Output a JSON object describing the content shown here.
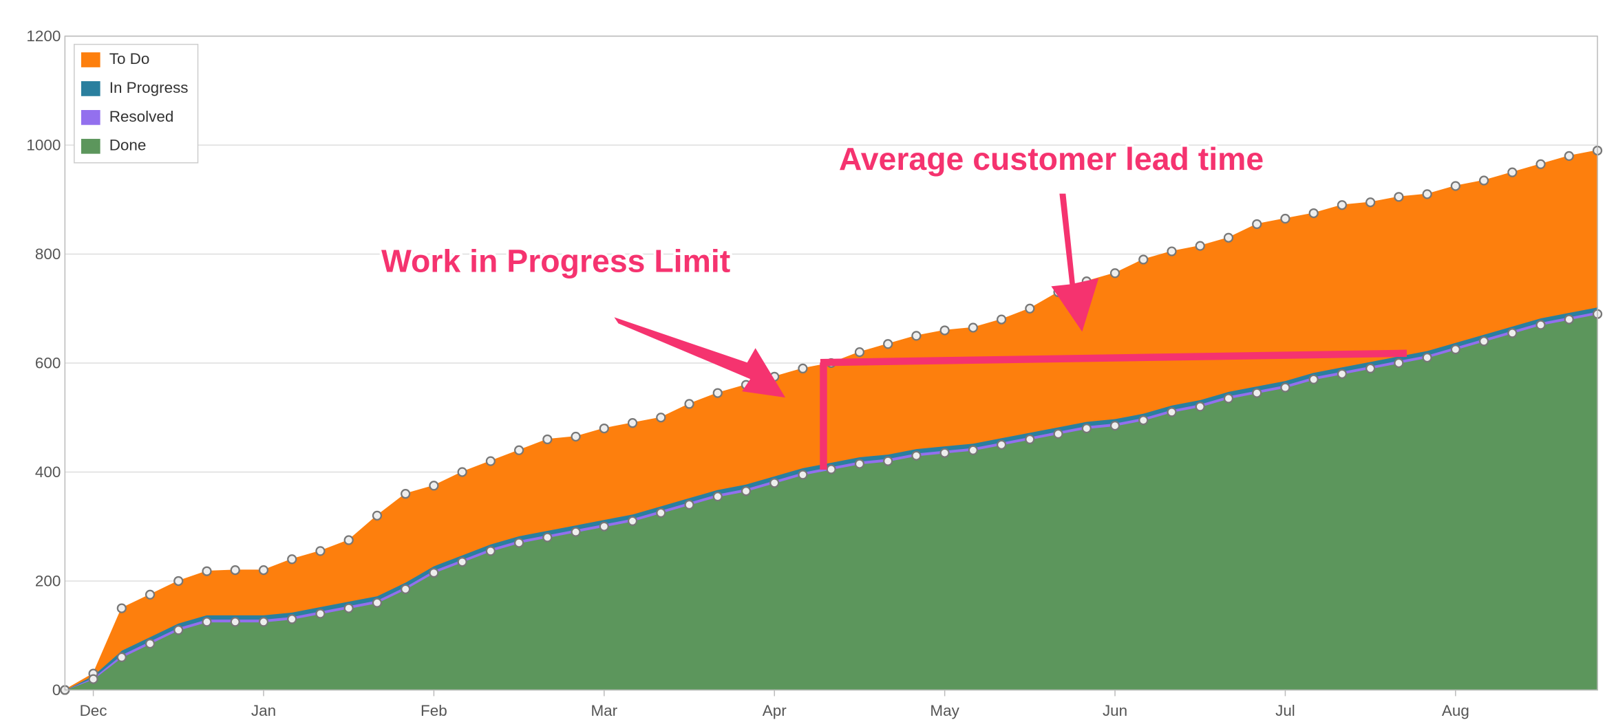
{
  "chart_data": {
    "type": "stacked-area",
    "categories": [
      null,
      "Dec",
      null,
      null,
      null,
      null,
      null,
      "Jan",
      null,
      null,
      null,
      null,
      null,
      "Feb",
      null,
      null,
      null,
      null,
      null,
      "Mar",
      null,
      null,
      null,
      null,
      null,
      "Apr",
      null,
      null,
      null,
      null,
      null,
      "May",
      null,
      null,
      null,
      null,
      null,
      "Jun",
      null,
      null,
      null,
      null,
      null,
      "Jul",
      null,
      null,
      null,
      null,
      null,
      "Aug",
      null,
      null,
      null,
      null,
      null
    ],
    "series": [
      {
        "name": "To Do",
        "color": "#fd7f0d",
        "values": [
          0,
          3,
          77,
          77,
          77,
          80,
          82,
          82,
          97,
          102,
          112,
          147,
          162,
          147,
          152,
          152,
          157,
          167,
          162,
          167,
          167,
          162,
          172,
          177,
          182,
          182,
          182,
          182,
          192,
          202,
          207,
          212,
          212,
          217,
          227,
          247,
          257,
          267,
          282,
          282,
          282,
          282,
          297,
          297,
          292,
          297,
          292,
          292,
          287,
          287,
          282,
          282,
          282,
          287,
          287
        ]
      },
      {
        "name": "In Progress",
        "color": "#2a7f9e",
        "values": [
          0,
          4,
          8,
          8,
          8,
          8,
          8,
          8,
          8,
          8,
          8,
          8,
          8,
          8,
          8,
          8,
          8,
          8,
          8,
          8,
          8,
          8,
          8,
          8,
          8,
          8,
          8,
          8,
          8,
          8,
          8,
          8,
          8,
          8,
          8,
          8,
          8,
          8,
          8,
          8,
          8,
          8,
          8,
          8,
          8,
          8,
          8,
          8,
          8,
          8,
          8,
          8,
          8,
          8,
          8
        ]
      },
      {
        "name": "Resolved",
        "color": "#9370ee",
        "values": [
          0,
          3,
          5,
          5,
          5,
          5,
          5,
          5,
          5,
          5,
          5,
          5,
          5,
          5,
          5,
          5,
          5,
          5,
          5,
          5,
          5,
          5,
          5,
          5,
          5,
          5,
          5,
          5,
          5,
          5,
          5,
          5,
          5,
          5,
          5,
          5,
          5,
          5,
          5,
          5,
          5,
          5,
          5,
          5,
          5,
          5,
          5,
          5,
          5,
          5,
          5,
          5,
          5,
          5,
          5
        ]
      },
      {
        "name": "Done",
        "color": "#5c965c",
        "values": [
          0,
          20,
          60,
          85,
          110,
          125,
          125,
          125,
          130,
          140,
          150,
          160,
          185,
          215,
          235,
          255,
          270,
          280,
          290,
          300,
          310,
          325,
          340,
          355,
          365,
          380,
          395,
          405,
          415,
          420,
          430,
          435,
          440,
          450,
          460,
          470,
          480,
          485,
          495,
          510,
          520,
          535,
          545,
          555,
          570,
          580,
          590,
          600,
          610,
          625,
          640,
          655,
          670,
          680,
          690
        ]
      }
    ],
    "ylim": [
      0,
      1200
    ],
    "yticks": [
      0,
      200,
      400,
      600,
      800,
      1000,
      1200
    ],
    "grid": true,
    "legend": "upper left",
    "annotations": [
      "Work in Progress Limit",
      "Average customer lead time"
    ]
  }
}
